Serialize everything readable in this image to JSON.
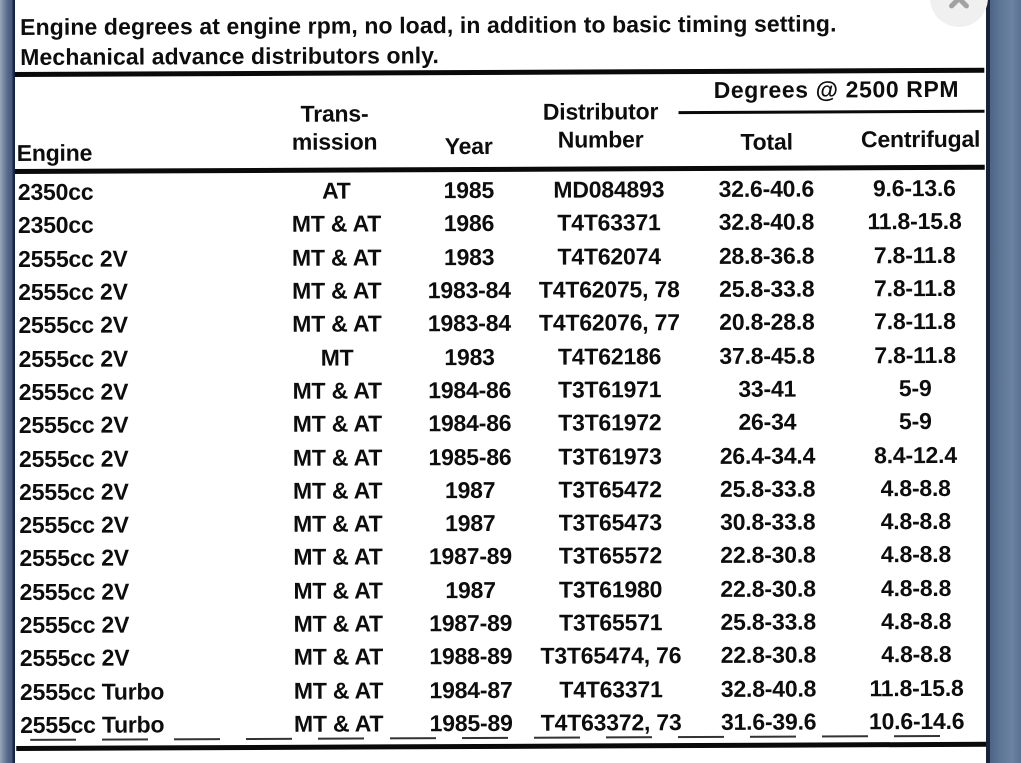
{
  "title": {
    "line1": "Engine degrees at engine rpm, no load, in addition to basic timing setting.",
    "line2": "Mechanical advance distributors only."
  },
  "close_button": {
    "icon": "x-mark"
  },
  "table": {
    "group_header": "Degrees @ 2500 RPM",
    "headers": {
      "engine": "Engine",
      "transmission_line1": "Trans-",
      "transmission_line2": "mission",
      "year": "Year",
      "distributor_line1": "Distributor",
      "distributor_line2": "Number",
      "total": "Total",
      "centrifugal": "Centrifugal"
    },
    "rows": [
      {
        "engine": "2350cc",
        "transmission": "AT",
        "year": "1985",
        "distributor": "MD084893",
        "total": "32.6-40.6",
        "centrifugal": "9.6-13.6"
      },
      {
        "engine": "2350cc",
        "transmission": "MT & AT",
        "year": "1986",
        "distributor": "T4T63371",
        "total": "32.8-40.8",
        "centrifugal": "11.8-15.8"
      },
      {
        "engine": "2555cc 2V",
        "transmission": "MT & AT",
        "year": "1983",
        "distributor": "T4T62074",
        "total": "28.8-36.8",
        "centrifugal": "7.8-11.8"
      },
      {
        "engine": "2555cc 2V",
        "transmission": "MT & AT",
        "year": "1983-84",
        "distributor": "T4T62075, 78",
        "total": "25.8-33.8",
        "centrifugal": "7.8-11.8"
      },
      {
        "engine": "2555cc 2V",
        "transmission": "MT & AT",
        "year": "1983-84",
        "distributor": "T4T62076, 77",
        "total": "20.8-28.8",
        "centrifugal": "7.8-11.8"
      },
      {
        "engine": "2555cc 2V",
        "transmission": "MT",
        "year": "1983",
        "distributor": "T4T62186",
        "total": "37.8-45.8",
        "centrifugal": "7.8-11.8"
      },
      {
        "engine": "2555cc 2V",
        "transmission": "MT & AT",
        "year": "1984-86",
        "distributor": "T3T61971",
        "total": "33-41",
        "centrifugal": "5-9"
      },
      {
        "engine": "2555cc 2V",
        "transmission": "MT & AT",
        "year": "1984-86",
        "distributor": "T3T61972",
        "total": "26-34",
        "centrifugal": "5-9"
      },
      {
        "engine": "2555cc 2V",
        "transmission": "MT & AT",
        "year": "1985-86",
        "distributor": "T3T61973",
        "total": "26.4-34.4",
        "centrifugal": "8.4-12.4"
      },
      {
        "engine": "2555cc 2V",
        "transmission": "MT & AT",
        "year": "1987",
        "distributor": "T3T65472",
        "total": "25.8-33.8",
        "centrifugal": "4.8-8.8"
      },
      {
        "engine": "2555cc 2V",
        "transmission": "MT & AT",
        "year": "1987",
        "distributor": "T3T65473",
        "total": "30.8-33.8",
        "centrifugal": "4.8-8.8"
      },
      {
        "engine": "2555cc 2V",
        "transmission": "MT & AT",
        "year": "1987-89",
        "distributor": "T3T65572",
        "total": "22.8-30.8",
        "centrifugal": "4.8-8.8"
      },
      {
        "engine": "2555cc 2V",
        "transmission": "MT & AT",
        "year": "1987",
        "distributor": "T3T61980",
        "total": "22.8-30.8",
        "centrifugal": "4.8-8.8"
      },
      {
        "engine": "2555cc 2V",
        "transmission": "MT & AT",
        "year": "1987-89",
        "distributor": "T3T65571",
        "total": "25.8-33.8",
        "centrifugal": "4.8-8.8"
      },
      {
        "engine": "2555cc 2V",
        "transmission": "MT & AT",
        "year": "1988-89",
        "distributor": "T3T65474, 76",
        "total": "22.8-30.8",
        "centrifugal": "4.8-8.8"
      },
      {
        "engine": "2555cc Turbo",
        "transmission": "MT & AT",
        "year": "1984-87",
        "distributor": "T4T63371",
        "total": "32.8-40.8",
        "centrifugal": "11.8-15.8"
      },
      {
        "engine": "2555cc Turbo",
        "transmission": "MT & AT",
        "year": "1985-89",
        "distributor": "T4T63372, 73",
        "total": "31.6-39.6",
        "centrifugal": "10.6-14.6"
      }
    ]
  },
  "colors": {
    "paper": "#ffffff",
    "ink": "#0d0d0d",
    "frame_left_dark": "#13213a",
    "frame_right_body": "#5f7796",
    "close_bg": "#f0f0f1",
    "close_icon": "#a2a2a2"
  }
}
